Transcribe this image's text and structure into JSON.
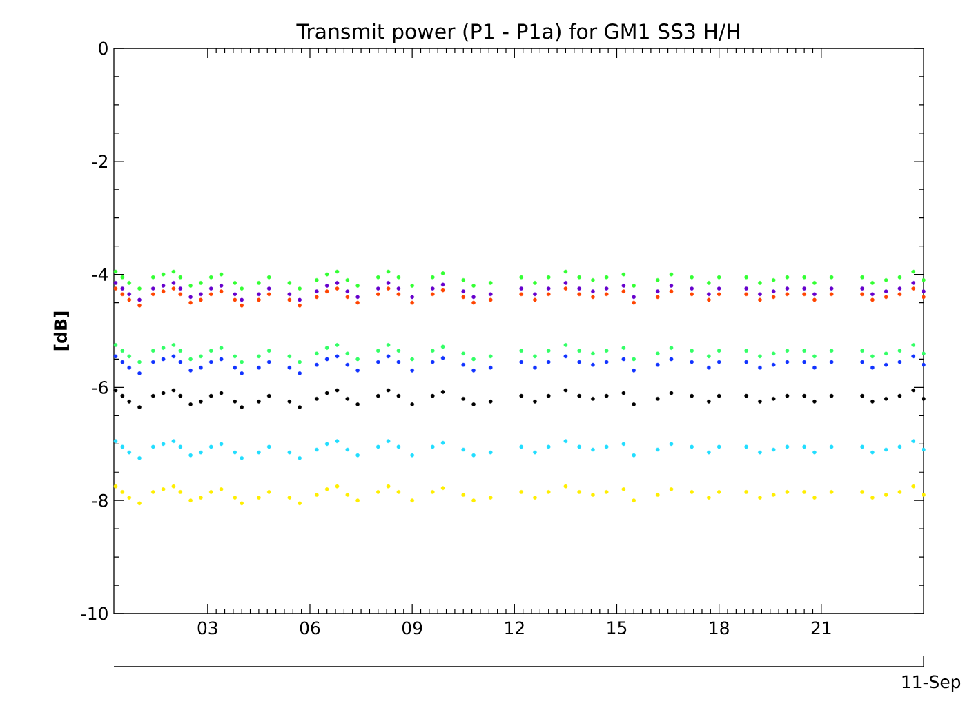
{
  "chart_data": {
    "type": "scatter",
    "title": "Transmit power (P1 - P1a) for GM1 SS3 H/H",
    "ylabel": "[dB]",
    "xlabel": "11-Sep",
    "x": [
      0.3,
      0.5,
      0.7,
      1.0,
      1.4,
      1.7,
      2.0,
      2.2,
      2.5,
      2.8,
      3.1,
      3.4,
      3.8,
      4.0,
      4.5,
      4.8,
      5.4,
      5.7,
      6.2,
      6.5,
      6.8,
      7.1,
      7.4,
      8.0,
      8.3,
      8.6,
      9.0,
      9.6,
      9.9,
      10.5,
      10.8,
      11.3,
      12.2,
      12.6,
      13.0,
      13.5,
      13.9,
      14.3,
      14.7,
      15.2,
      15.5,
      16.2,
      16.6,
      17.2,
      17.7,
      18.0,
      18.8,
      19.2,
      19.6,
      20.0,
      20.5,
      20.8,
      21.3,
      22.2,
      22.5,
      22.9,
      23.3,
      23.7,
      24.0
    ],
    "series": [
      {
        "color": "#33ff33",
        "values": [
          -3.95,
          -4.05,
          -4.15,
          -4.25,
          -4.05,
          -4.0,
          -3.95,
          -4.05,
          -4.2,
          -4.15,
          -4.05,
          -4.0,
          -4.15,
          -4.25,
          -4.15,
          -4.05,
          -4.15,
          -4.25,
          -4.1,
          -4.0,
          -3.95,
          -4.1,
          -4.2,
          -4.05,
          -3.95,
          -4.05,
          -4.2,
          -4.05,
          -3.98,
          -4.1,
          -4.2,
          -4.15,
          -4.05,
          -4.15,
          -4.05,
          -3.95,
          -4.05,
          -4.1,
          -4.05,
          -4.0,
          -4.2,
          -4.1,
          -4.0,
          -4.05,
          -4.15,
          -4.05,
          -4.05,
          -4.15,
          -4.1,
          -4.05,
          -4.05,
          -4.15,
          -4.05,
          -4.05,
          -4.15,
          -4.1,
          -4.05,
          -3.95,
          -4.1
        ]
      },
      {
        "color": "#6600cc",
        "values": [
          -4.15,
          -4.25,
          -4.35,
          -4.45,
          -4.25,
          -4.2,
          -4.15,
          -4.25,
          -4.4,
          -4.35,
          -4.25,
          -4.2,
          -4.35,
          -4.45,
          -4.35,
          -4.25,
          -4.35,
          -4.45,
          -4.3,
          -4.2,
          -4.15,
          -4.3,
          -4.4,
          -4.25,
          -4.15,
          -4.25,
          -4.4,
          -4.25,
          -4.18,
          -4.3,
          -4.4,
          -4.35,
          -4.25,
          -4.35,
          -4.25,
          -4.15,
          -4.25,
          -4.3,
          -4.25,
          -4.2,
          -4.4,
          -4.3,
          -4.2,
          -4.25,
          -4.35,
          -4.25,
          -4.25,
          -4.35,
          -4.3,
          -4.25,
          -4.25,
          -4.35,
          -4.25,
          -4.25,
          -4.35,
          -4.3,
          -4.25,
          -4.15,
          -4.3
        ]
      },
      {
        "color": "#ff4400",
        "values": [
          -4.25,
          -4.35,
          -4.45,
          -4.55,
          -4.35,
          -4.3,
          -4.25,
          -4.35,
          -4.5,
          -4.45,
          -4.35,
          -4.3,
          -4.45,
          -4.55,
          -4.45,
          -4.35,
          -4.45,
          -4.55,
          -4.4,
          -4.3,
          -4.25,
          -4.4,
          -4.5,
          -4.35,
          -4.25,
          -4.35,
          -4.5,
          -4.35,
          -4.28,
          -4.4,
          -4.5,
          -4.45,
          -4.35,
          -4.45,
          -4.35,
          -4.25,
          -4.35,
          -4.4,
          -4.35,
          -4.3,
          -4.5,
          -4.4,
          -4.3,
          -4.35,
          -4.45,
          -4.35,
          -4.35,
          -4.45,
          -4.4,
          -4.35,
          -4.35,
          -4.45,
          -4.35,
          -4.35,
          -4.45,
          -4.4,
          -4.35,
          -4.25,
          -4.4
        ]
      },
      {
        "color": "#33ff66",
        "values": [
          -5.25,
          -5.35,
          -5.45,
          -5.55,
          -5.35,
          -5.3,
          -5.25,
          -5.35,
          -5.5,
          -5.45,
          -5.35,
          -5.3,
          -5.45,
          -5.55,
          -5.45,
          -5.35,
          -5.45,
          -5.55,
          -5.4,
          -5.3,
          -5.25,
          -5.4,
          -5.5,
          -5.35,
          -5.25,
          -5.35,
          -5.5,
          -5.35,
          -5.28,
          -5.4,
          -5.5,
          -5.45,
          -5.35,
          -5.45,
          -5.35,
          -5.25,
          -5.35,
          -5.4,
          -5.35,
          -5.3,
          -5.5,
          -5.4,
          -5.3,
          -5.35,
          -5.45,
          -5.35,
          -5.35,
          -5.45,
          -5.4,
          -5.35,
          -5.35,
          -5.45,
          -5.35,
          -5.35,
          -5.45,
          -5.4,
          -5.35,
          -5.25,
          -5.4
        ]
      },
      {
        "color": "#1133ff",
        "values": [
          -5.45,
          -5.55,
          -5.65,
          -5.75,
          -5.55,
          -5.5,
          -5.45,
          -5.55,
          -5.7,
          -5.65,
          -5.55,
          -5.5,
          -5.65,
          -5.75,
          -5.65,
          -5.55,
          -5.65,
          -5.75,
          -5.6,
          -5.5,
          -5.45,
          -5.6,
          -5.7,
          -5.55,
          -5.45,
          -5.55,
          -5.7,
          -5.55,
          -5.48,
          -5.6,
          -5.7,
          -5.65,
          -5.55,
          -5.65,
          -5.55,
          -5.45,
          -5.55,
          -5.6,
          -5.55,
          -5.5,
          -5.7,
          -5.6,
          -5.5,
          -5.55,
          -5.65,
          -5.55,
          -5.55,
          -5.65,
          -5.6,
          -5.55,
          -5.55,
          -5.65,
          -5.55,
          -5.55,
          -5.65,
          -5.6,
          -5.55,
          -5.45,
          -5.6
        ]
      },
      {
        "color": "#000000",
        "values": [
          -6.05,
          -6.15,
          -6.25,
          -6.35,
          -6.15,
          -6.1,
          -6.05,
          -6.15,
          -6.3,
          -6.25,
          -6.15,
          -6.1,
          -6.25,
          -6.35,
          -6.25,
          -6.15,
          -6.25,
          -6.35,
          -6.2,
          -6.1,
          -6.05,
          -6.2,
          -6.3,
          -6.15,
          -6.05,
          -6.15,
          -6.3,
          -6.15,
          -6.08,
          -6.2,
          -6.3,
          -6.25,
          -6.15,
          -6.25,
          -6.15,
          -6.05,
          -6.15,
          -6.2,
          -6.15,
          -6.1,
          -6.3,
          -6.2,
          -6.1,
          -6.15,
          -6.25,
          -6.15,
          -6.15,
          -6.25,
          -6.2,
          -6.15,
          -6.15,
          -6.25,
          -6.15,
          -6.15,
          -6.25,
          -6.2,
          -6.15,
          -6.05,
          -6.2
        ]
      },
      {
        "color": "#22ddff",
        "values": [
          -6.95,
          -7.05,
          -7.15,
          -7.25,
          -7.05,
          -7.0,
          -6.95,
          -7.05,
          -7.2,
          -7.15,
          -7.05,
          -7.0,
          -7.15,
          -7.25,
          -7.15,
          -7.05,
          -7.15,
          -7.25,
          -7.1,
          -7.0,
          -6.95,
          -7.1,
          -7.2,
          -7.05,
          -6.95,
          -7.05,
          -7.2,
          -7.05,
          -6.98,
          -7.1,
          -7.2,
          -7.15,
          -7.05,
          -7.15,
          -7.05,
          -6.95,
          -7.05,
          -7.1,
          -7.05,
          -7.0,
          -7.2,
          -7.1,
          -7.0,
          -7.05,
          -7.15,
          -7.05,
          -7.05,
          -7.15,
          -7.1,
          -7.05,
          -7.05,
          -7.15,
          -7.05,
          -7.05,
          -7.15,
          -7.1,
          -7.05,
          -6.95,
          -7.1
        ]
      },
      {
        "color": "#ffee00",
        "values": [
          -7.75,
          -7.85,
          -7.95,
          -8.05,
          -7.85,
          -7.8,
          -7.75,
          -7.85,
          -8.0,
          -7.95,
          -7.85,
          -7.8,
          -7.95,
          -8.05,
          -7.95,
          -7.85,
          -7.95,
          -8.05,
          -7.9,
          -7.8,
          -7.75,
          -7.9,
          -8.0,
          -7.85,
          -7.75,
          -7.85,
          -8.0,
          -7.85,
          -7.78,
          -7.9,
          -8.0,
          -7.95,
          -7.85,
          -7.95,
          -7.85,
          -7.75,
          -7.85,
          -7.9,
          -7.85,
          -7.8,
          -8.0,
          -7.9,
          -7.8,
          -7.85,
          -7.95,
          -7.85,
          -7.85,
          -7.95,
          -7.9,
          -7.85,
          -7.85,
          -7.95,
          -7.85,
          -7.85,
          -7.95,
          -7.9,
          -7.85,
          -7.75,
          -7.9
        ]
      }
    ],
    "xlim": [
      0.25,
      24
    ],
    "ylim": [
      -10,
      0
    ],
    "xticks": [
      {
        "value": 3,
        "label": "03"
      },
      {
        "value": 6,
        "label": "06"
      },
      {
        "value": 9,
        "label": "09"
      },
      {
        "value": 12,
        "label": "12"
      },
      {
        "value": 15,
        "label": "15"
      },
      {
        "value": 18,
        "label": "18"
      },
      {
        "value": 21,
        "label": "21"
      }
    ],
    "yticks": [
      -10,
      -8,
      -6,
      -4,
      -2,
      0
    ],
    "marker": "circle",
    "grid": false
  }
}
